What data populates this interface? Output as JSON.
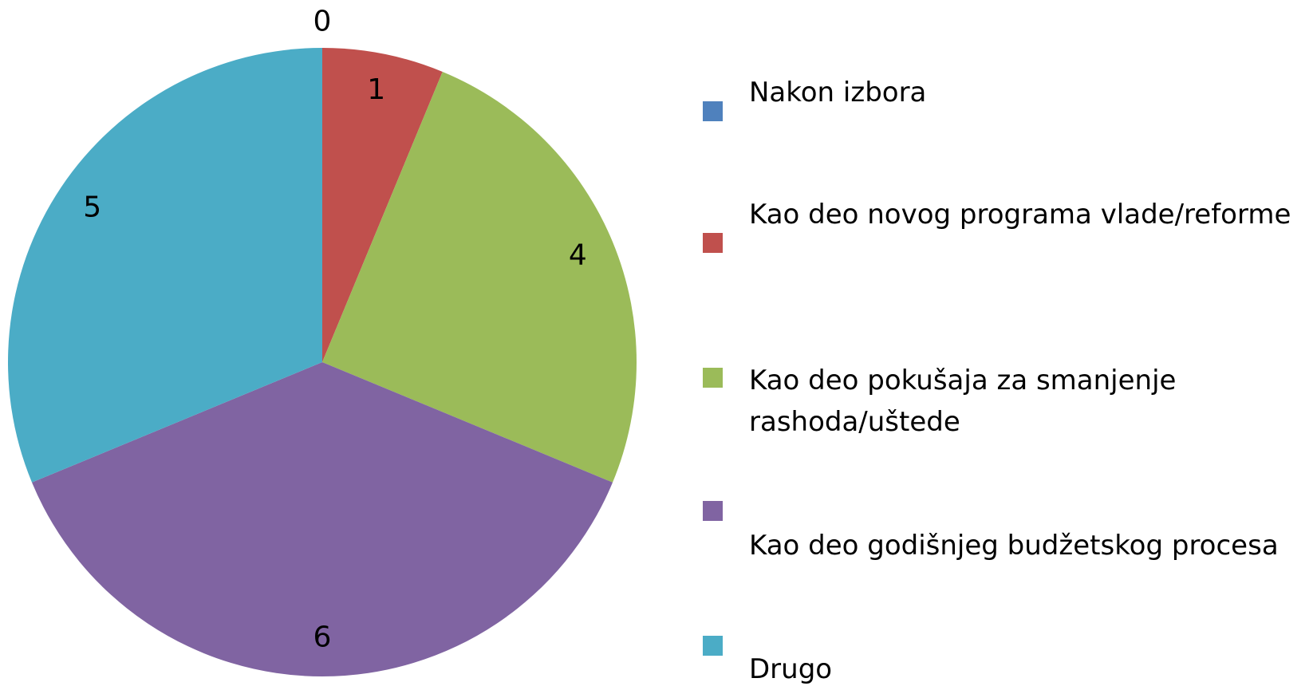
{
  "chart_data": {
    "type": "pie",
    "categories": [
      "Nakon izbora",
      "Kao deo novog programa vlade/reforme",
      "Kao deo pokušaja za smanjenje rashoda/uštede",
      "Kao deo godišnjeg budžetskog procesa",
      "Drugo"
    ],
    "values": [
      0,
      1,
      4,
      6,
      5
    ],
    "colors": [
      "#4f81bd",
      "#c0504d",
      "#9bbb59",
      "#8064a2",
      "#4bacc6"
    ],
    "legend": "right"
  }
}
